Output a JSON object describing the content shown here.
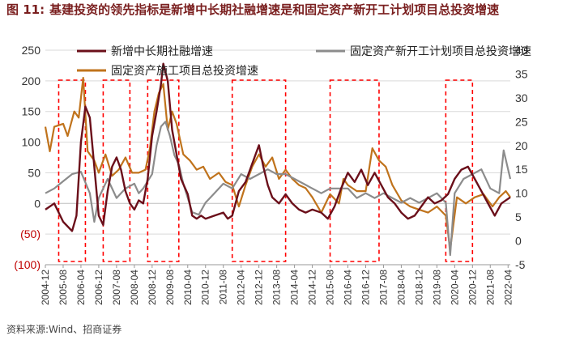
{
  "figure": {
    "number": "图 11:",
    "title": "基建投资的领先指标是新增中长期社融增速是和固定资产新开工计划项目总投资增速",
    "source": "资料来源:Wind、招商证券"
  },
  "colors": {
    "series1": "#6b0f1a",
    "series2": "#8c8c8c",
    "series3": "#c0731c",
    "highlight": "#ff0000",
    "negative_label": "#c00000",
    "axis_text": "#333333",
    "grid": "#d9d9d9"
  },
  "chart_data": {
    "type": "line",
    "title": "",
    "x_start": "2004-12",
    "x_end": "2022-05",
    "tick_labels": [
      "2004-12",
      "2005-08",
      "2006-04",
      "2006-12",
      "2007-08",
      "2008-04",
      "2008-12",
      "2009-08",
      "2010-04",
      "2010-12",
      "2011-08",
      "2012-04",
      "2012-12",
      "2013-08",
      "2014-04",
      "2014-12",
      "2015-08",
      "2016-04",
      "2016-12",
      "2017-08",
      "2018-04",
      "2018-12",
      "2019-08",
      "2020-04",
      "2020-12",
      "2021-08",
      "2022-04"
    ],
    "y_left": {
      "min": -100,
      "max": 250,
      "step": 50,
      "tick_labels": [
        "(100)",
        "(50)",
        "0",
        "50",
        "100",
        "150",
        "200",
        "250"
      ]
    },
    "y_right": {
      "min": -5,
      "max": 40,
      "step": 5,
      "tick_labels": [
        "-5",
        "0",
        "5",
        "10",
        "15",
        "20",
        "25",
        "30",
        "35",
        "40"
      ]
    },
    "highlight_periods": [
      [
        "2005-06",
        "2006-06"
      ],
      [
        "2007-02",
        "2008-02"
      ],
      [
        "2008-10",
        "2009-12"
      ],
      [
        "2011-12",
        "2013-12"
      ],
      [
        "2015-08",
        "2017-06"
      ],
      [
        "2019-12",
        "2020-12"
      ]
    ],
    "series": [
      {
        "name": "新增中长期社融增速",
        "axis": "left",
        "points": [
          [
            "2004-12",
            -10
          ],
          [
            "2005-04",
            0
          ],
          [
            "2005-08",
            -30
          ],
          [
            "2005-12",
            -45
          ],
          [
            "2006-02",
            -20
          ],
          [
            "2006-04",
            100
          ],
          [
            "2006-06",
            158
          ],
          [
            "2006-08",
            140
          ],
          [
            "2006-10",
            60
          ],
          [
            "2006-12",
            -20
          ],
          [
            "2007-02",
            -35
          ],
          [
            "2007-04",
            20
          ],
          [
            "2007-06",
            60
          ],
          [
            "2007-08",
            75
          ],
          [
            "2007-10",
            55
          ],
          [
            "2007-12",
            20
          ],
          [
            "2008-02",
            0
          ],
          [
            "2008-04",
            -10
          ],
          [
            "2008-06",
            5
          ],
          [
            "2008-08",
            0
          ],
          [
            "2008-10",
            40
          ],
          [
            "2008-12",
            110
          ],
          [
            "2009-02",
            150
          ],
          [
            "2009-04",
            195
          ],
          [
            "2009-05",
            228
          ],
          [
            "2009-07",
            200
          ],
          [
            "2009-09",
            120
          ],
          [
            "2009-11",
            80
          ],
          [
            "2010-01",
            40
          ],
          [
            "2010-04",
            15
          ],
          [
            "2010-06",
            -20
          ],
          [
            "2010-08",
            -25
          ],
          [
            "2010-10",
            -20
          ],
          [
            "2010-12",
            -25
          ],
          [
            "2011-04",
            -20
          ],
          [
            "2011-08",
            -15
          ],
          [
            "2011-10",
            -25
          ],
          [
            "2011-12",
            -20
          ],
          [
            "2012-03",
            20
          ],
          [
            "2012-06",
            35
          ],
          [
            "2012-09",
            65
          ],
          [
            "2012-12",
            95
          ],
          [
            "2013-02",
            60
          ],
          [
            "2013-04",
            30
          ],
          [
            "2013-06",
            10
          ],
          [
            "2013-09",
            0
          ],
          [
            "2013-12",
            15
          ],
          [
            "2014-03",
            0
          ],
          [
            "2014-06",
            -10
          ],
          [
            "2014-09",
            -15
          ],
          [
            "2014-12",
            -10
          ],
          [
            "2015-04",
            -15
          ],
          [
            "2015-07",
            -25
          ],
          [
            "2015-10",
            -5
          ],
          [
            "2016-01",
            25
          ],
          [
            "2016-04",
            50
          ],
          [
            "2016-07",
            35
          ],
          [
            "2016-10",
            55
          ],
          [
            "2017-01",
            30
          ],
          [
            "2017-04",
            50
          ],
          [
            "2017-07",
            30
          ],
          [
            "2017-10",
            10
          ],
          [
            "2018-01",
            0
          ],
          [
            "2018-04",
            -15
          ],
          [
            "2018-07",
            -25
          ],
          [
            "2018-10",
            -20
          ],
          [
            "2019-01",
            -5
          ],
          [
            "2019-04",
            10
          ],
          [
            "2019-07",
            0
          ],
          [
            "2019-10",
            5
          ],
          [
            "2020-01",
            15
          ],
          [
            "2020-04",
            40
          ],
          [
            "2020-07",
            55
          ],
          [
            "2020-10",
            60
          ],
          [
            "2021-01",
            40
          ],
          [
            "2021-04",
            20
          ],
          [
            "2021-07",
            0
          ],
          [
            "2021-10",
            -20
          ],
          [
            "2022-01",
            0
          ],
          [
            "2022-05",
            10
          ]
        ]
      },
      {
        "name": "固定资产新开工计划项目总投资增速",
        "axis": "right",
        "points": [
          [
            "2004-12",
            10
          ],
          [
            "2005-04",
            11
          ],
          [
            "2005-08",
            12.5
          ],
          [
            "2005-12",
            14
          ],
          [
            "2006-04",
            14.5
          ],
          [
            "2006-08",
            10
          ],
          [
            "2006-10",
            4
          ],
          [
            "2006-12",
            9
          ],
          [
            "2007-04",
            13
          ],
          [
            "2007-08",
            9
          ],
          [
            "2007-12",
            11
          ],
          [
            "2008-04",
            12
          ],
          [
            "2008-06",
            10
          ],
          [
            "2008-08",
            11
          ],
          [
            "2008-12",
            14
          ],
          [
            "2009-02",
            20
          ],
          [
            "2009-04",
            24
          ],
          [
            "2009-06",
            25
          ],
          [
            "2009-08",
            22
          ],
          [
            "2009-10",
            18
          ],
          [
            "2009-12",
            16
          ],
          [
            "2010-02",
            12
          ],
          [
            "2010-04",
            9
          ],
          [
            "2010-06",
            6
          ],
          [
            "2010-09",
            5.5
          ],
          [
            "2010-12",
            8
          ],
          [
            "2011-04",
            10
          ],
          [
            "2011-08",
            12
          ],
          [
            "2011-12",
            11
          ],
          [
            "2012-04",
            14
          ],
          [
            "2012-08",
            13
          ],
          [
            "2012-12",
            14
          ],
          [
            "2013-04",
            15
          ],
          [
            "2013-08",
            14
          ],
          [
            "2013-12",
            14
          ],
          [
            "2014-04",
            13
          ],
          [
            "2014-08",
            12
          ],
          [
            "2014-12",
            11
          ],
          [
            "2015-04",
            10
          ],
          [
            "2015-08",
            11
          ],
          [
            "2015-12",
            11
          ],
          [
            "2016-04",
            11
          ],
          [
            "2016-08",
            9
          ],
          [
            "2016-12",
            10
          ],
          [
            "2017-04",
            9
          ],
          [
            "2017-08",
            10
          ],
          [
            "2017-12",
            9
          ],
          [
            "2018-04",
            8
          ],
          [
            "2018-08",
            9
          ],
          [
            "2018-12",
            8
          ],
          [
            "2019-04",
            9
          ],
          [
            "2019-08",
            10
          ],
          [
            "2019-12",
            8
          ],
          [
            "2020-02",
            -3
          ],
          [
            "2020-04",
            10
          ],
          [
            "2020-08",
            13
          ],
          [
            "2020-12",
            14
          ],
          [
            "2021-04",
            15
          ],
          [
            "2021-08",
            11
          ],
          [
            "2021-12",
            10
          ],
          [
            "2022-02",
            19
          ],
          [
            "2022-05",
            13
          ]
        ]
      },
      {
        "name": "固定资产施工项目总投资增速",
        "axis": "left",
        "points": [
          [
            "2004-12",
            125
          ],
          [
            "2005-02",
            85
          ],
          [
            "2005-04",
            125
          ],
          [
            "2005-08",
            130
          ],
          [
            "2005-10",
            110
          ],
          [
            "2006-01",
            150
          ],
          [
            "2006-03",
            140
          ],
          [
            "2006-05",
            205
          ],
          [
            "2006-07",
            85
          ],
          [
            "2006-10",
            70
          ],
          [
            "2006-12",
            50
          ],
          [
            "2007-03",
            80
          ],
          [
            "2007-06",
            45
          ],
          [
            "2007-09",
            55
          ],
          [
            "2007-12",
            75
          ],
          [
            "2008-03",
            50
          ],
          [
            "2008-06",
            50
          ],
          [
            "2008-09",
            55
          ],
          [
            "2008-11",
            90
          ],
          [
            "2009-01",
            150
          ],
          [
            "2009-03",
            180
          ],
          [
            "2009-05",
            195
          ],
          [
            "2009-07",
            120
          ],
          [
            "2009-09",
            150
          ],
          [
            "2009-11",
            130
          ],
          [
            "2010-02",
            80
          ],
          [
            "2010-05",
            70
          ],
          [
            "2010-08",
            55
          ],
          [
            "2010-11",
            60
          ],
          [
            "2011-02",
            40
          ],
          [
            "2011-06",
            50
          ],
          [
            "2011-09",
            35
          ],
          [
            "2011-12",
            30
          ],
          [
            "2012-03",
            -5
          ],
          [
            "2012-06",
            30
          ],
          [
            "2012-09",
            60
          ],
          [
            "2012-12",
            80
          ],
          [
            "2013-03",
            60
          ],
          [
            "2013-06",
            75
          ],
          [
            "2013-09",
            40
          ],
          [
            "2013-12",
            55
          ],
          [
            "2014-03",
            40
          ],
          [
            "2014-06",
            30
          ],
          [
            "2014-09",
            25
          ],
          [
            "2014-12",
            10
          ],
          [
            "2015-04",
            -15
          ],
          [
            "2015-08",
            15
          ],
          [
            "2015-12",
            0
          ],
          [
            "2016-02",
            40
          ],
          [
            "2016-04",
            30
          ],
          [
            "2016-08",
            20
          ],
          [
            "2016-12",
            20
          ],
          [
            "2017-03",
            90
          ],
          [
            "2017-06",
            70
          ],
          [
            "2017-09",
            60
          ],
          [
            "2017-12",
            30
          ],
          [
            "2018-04",
            5
          ],
          [
            "2018-08",
            -5
          ],
          [
            "2018-12",
            -10
          ],
          [
            "2019-04",
            -15
          ],
          [
            "2019-08",
            -5
          ],
          [
            "2019-12",
            -20
          ],
          [
            "2020-02",
            -75
          ],
          [
            "2020-05",
            10
          ],
          [
            "2020-09",
            0
          ],
          [
            "2021-01",
            10
          ],
          [
            "2021-05",
            15
          ],
          [
            "2021-09",
            -5
          ],
          [
            "2021-12",
            10
          ],
          [
            "2022-03",
            20
          ],
          [
            "2022-05",
            10
          ]
        ]
      }
    ]
  }
}
